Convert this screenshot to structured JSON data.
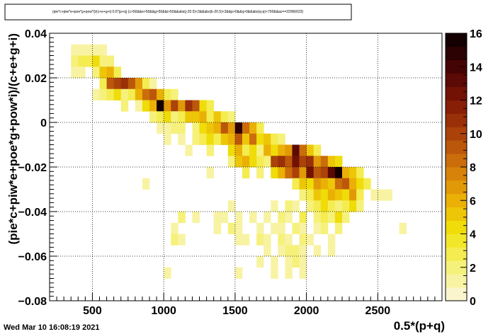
{
  "chart_data": {
    "type": "heatmap",
    "title": "(pie*c+piw*e+poe*g+pow*i)/(c+e+g+i):0.5*(p+q) {c>50&&e>50&&g>50&&i>50&&abs(j-20.5)<3&&abs(k-20.5)<3&&p>0&&q>0&&abs(q-p)<700&&ac==22066023}",
    "xlabel": "0.5*(p+q)",
    "ylabel": "(pie*c+piw*e+poe*g+pow*i)/(c+e+g+i)",
    "xlim": [
      200,
      2950
    ],
    "ylim": [
      -0.08,
      0.04
    ],
    "x_ticks": [
      500,
      1000,
      1500,
      2000,
      2500
    ],
    "x_tick_labels": [
      "500",
      "1000",
      "1500",
      "2000",
      "2500"
    ],
    "y_ticks": [
      -0.08,
      -0.06,
      -0.04,
      -0.02,
      0,
      0.02,
      0.04
    ],
    "y_tick_labels": [
      "−0.08",
      "−0.06",
      "−0.04",
      "−0.02",
      "0",
      "0.02",
      "0.04"
    ],
    "grid": true,
    "bin_width_x": 50,
    "bin_width_y": 0.005,
    "zlim": [
      0,
      16
    ],
    "z_ticks": [
      0,
      2,
      4,
      6,
      8,
      10,
      12,
      14,
      16
    ],
    "z_tick_labels": [
      "0",
      "2",
      "4",
      "6",
      "8",
      "10",
      "12",
      "14",
      "16"
    ],
    "bins": [
      [
        350,
        0.03,
        1
      ],
      [
        400,
        0.03,
        1
      ],
      [
        450,
        0.03,
        1
      ],
      [
        500,
        0.03,
        1
      ],
      [
        550,
        0.03,
        1
      ],
      [
        350,
        0.025,
        2
      ],
      [
        400,
        0.025,
        3
      ],
      [
        450,
        0.025,
        3
      ],
      [
        500,
        0.025,
        4
      ],
      [
        550,
        0.025,
        2
      ],
      [
        600,
        0.025,
        2
      ],
      [
        350,
        0.02,
        1
      ],
      [
        400,
        0.02,
        1
      ],
      [
        500,
        0.02,
        2
      ],
      [
        550,
        0.02,
        5
      ],
      [
        600,
        0.02,
        6
      ],
      [
        650,
        0.02,
        3
      ],
      [
        550,
        0.015,
        3
      ],
      [
        600,
        0.015,
        9
      ],
      [
        650,
        0.015,
        10
      ],
      [
        700,
        0.015,
        11
      ],
      [
        750,
        0.015,
        9
      ],
      [
        800,
        0.015,
        7
      ],
      [
        850,
        0.015,
        3
      ],
      [
        900,
        0.015,
        1
      ],
      [
        500,
        0.01,
        1
      ],
      [
        550,
        0.01,
        2
      ],
      [
        600,
        0.01,
        3
      ],
      [
        650,
        0.01,
        4
      ],
      [
        700,
        0.01,
        2
      ],
      [
        750,
        0.01,
        3
      ],
      [
        800,
        0.01,
        6
      ],
      [
        850,
        0.01,
        8
      ],
      [
        900,
        0.01,
        9
      ],
      [
        950,
        0.01,
        6
      ],
      [
        1000,
        0.01,
        3
      ],
      [
        1050,
        0.01,
        2
      ],
      [
        700,
        0.005,
        2
      ],
      [
        800,
        0.005,
        1
      ],
      [
        850,
        0.005,
        4
      ],
      [
        900,
        0.005,
        6
      ],
      [
        950,
        0.005,
        16
      ],
      [
        1000,
        0.005,
        7
      ],
      [
        1050,
        0.005,
        10
      ],
      [
        1100,
        0.005,
        7
      ],
      [
        1150,
        0.005,
        11
      ],
      [
        1200,
        0.005,
        9
      ],
      [
        1250,
        0.005,
        4
      ],
      [
        1300,
        0.005,
        3
      ],
      [
        900,
        0.0,
        2
      ],
      [
        950,
        0.0,
        3
      ],
      [
        1000,
        0.0,
        4
      ],
      [
        1050,
        0.0,
        2
      ],
      [
        1100,
        0.0,
        3
      ],
      [
        1150,
        0.0,
        5
      ],
      [
        1200,
        0.0,
        5
      ],
      [
        1250,
        0.0,
        6
      ],
      [
        1300,
        0.0,
        3
      ],
      [
        1350,
        0.0,
        5
      ],
      [
        1400,
        0.0,
        3
      ],
      [
        1450,
        0.0,
        2
      ],
      [
        950,
        -0.005,
        1
      ],
      [
        1000,
        -0.005,
        1
      ],
      [
        1050,
        -0.005,
        2
      ],
      [
        1100,
        -0.005,
        2
      ],
      [
        1200,
        -0.005,
        2
      ],
      [
        1250,
        -0.005,
        4
      ],
      [
        1300,
        -0.005,
        5
      ],
      [
        1350,
        -0.005,
        6
      ],
      [
        1400,
        -0.005,
        9
      ],
      [
        1450,
        -0.005,
        7
      ],
      [
        1500,
        -0.005,
        15
      ],
      [
        1550,
        -0.005,
        8
      ],
      [
        1600,
        -0.005,
        6
      ],
      [
        1650,
        -0.005,
        3
      ],
      [
        1000,
        -0.01,
        1
      ],
      [
        1100,
        -0.01,
        1
      ],
      [
        1200,
        -0.01,
        2
      ],
      [
        1250,
        -0.01,
        3
      ],
      [
        1300,
        -0.01,
        4
      ],
      [
        1350,
        -0.01,
        3
      ],
      [
        1400,
        -0.01,
        5
      ],
      [
        1450,
        -0.01,
        6
      ],
      [
        1500,
        -0.01,
        9
      ],
      [
        1550,
        -0.01,
        5
      ],
      [
        1600,
        -0.01,
        8
      ],
      [
        1650,
        -0.01,
        4
      ],
      [
        1700,
        -0.01,
        5
      ],
      [
        1750,
        -0.01,
        3
      ],
      [
        1800,
        -0.01,
        2
      ],
      [
        1150,
        -0.015,
        1
      ],
      [
        1300,
        -0.015,
        2
      ],
      [
        1450,
        -0.015,
        4
      ],
      [
        1500,
        -0.015,
        6
      ],
      [
        1550,
        -0.015,
        3
      ],
      [
        1600,
        -0.015,
        4
      ],
      [
        1650,
        -0.015,
        2
      ],
      [
        1700,
        -0.015,
        6
      ],
      [
        1750,
        -0.015,
        4
      ],
      [
        1800,
        -0.015,
        6
      ],
      [
        1850,
        -0.015,
        7
      ],
      [
        1900,
        -0.015,
        13
      ],
      [
        1950,
        -0.015,
        8
      ],
      [
        2000,
        -0.015,
        5
      ],
      [
        2050,
        -0.015,
        3
      ],
      [
        1450,
        -0.02,
        2
      ],
      [
        1500,
        -0.02,
        5
      ],
      [
        1550,
        -0.02,
        6
      ],
      [
        1600,
        -0.02,
        4
      ],
      [
        1650,
        -0.02,
        3
      ],
      [
        1700,
        -0.02,
        2
      ],
      [
        1750,
        -0.02,
        10
      ],
      [
        1800,
        -0.02,
        11
      ],
      [
        1850,
        -0.02,
        9
      ],
      [
        1900,
        -0.02,
        12
      ],
      [
        1950,
        -0.02,
        10
      ],
      [
        2000,
        -0.02,
        11
      ],
      [
        2050,
        -0.02,
        7
      ],
      [
        2100,
        -0.02,
        8
      ],
      [
        2150,
        -0.02,
        5
      ],
      [
        2200,
        -0.02,
        4
      ],
      [
        1300,
        -0.025,
        1
      ],
      [
        1550,
        -0.025,
        3
      ],
      [
        1650,
        -0.025,
        2
      ],
      [
        1750,
        -0.025,
        4
      ],
      [
        1800,
        -0.025,
        6
      ],
      [
        1850,
        -0.025,
        8
      ],
      [
        1900,
        -0.025,
        10
      ],
      [
        1950,
        -0.025,
        7
      ],
      [
        2000,
        -0.025,
        12
      ],
      [
        2050,
        -0.025,
        9
      ],
      [
        2100,
        -0.025,
        10
      ],
      [
        2150,
        -0.025,
        13
      ],
      [
        2200,
        -0.025,
        16
      ],
      [
        2250,
        -0.025,
        6
      ],
      [
        2300,
        -0.025,
        5
      ],
      [
        2350,
        -0.025,
        3
      ],
      [
        850,
        -0.03,
        1
      ],
      [
        1900,
        -0.03,
        3
      ],
      [
        1950,
        -0.03,
        5
      ],
      [
        2000,
        -0.03,
        4
      ],
      [
        2050,
        -0.03,
        7
      ],
      [
        2100,
        -0.03,
        6
      ],
      [
        2150,
        -0.03,
        5
      ],
      [
        2200,
        -0.03,
        8
      ],
      [
        2250,
        -0.03,
        9
      ],
      [
        2300,
        -0.03,
        6
      ],
      [
        2350,
        -0.03,
        4
      ],
      [
        2400,
        -0.03,
        3
      ],
      [
        1950,
        -0.035,
        2
      ],
      [
        2000,
        -0.035,
        3
      ],
      [
        2050,
        -0.035,
        5
      ],
      [
        2100,
        -0.035,
        4
      ],
      [
        2150,
        -0.035,
        6
      ],
      [
        2200,
        -0.035,
        5
      ],
      [
        2250,
        -0.035,
        4
      ],
      [
        2300,
        -0.035,
        7
      ],
      [
        2350,
        -0.035,
        3
      ],
      [
        2450,
        -0.035,
        1
      ],
      [
        2500,
        -0.035,
        1
      ],
      [
        2550,
        -0.035,
        1
      ],
      [
        1450,
        -0.04,
        1
      ],
      [
        1750,
        -0.04,
        1
      ],
      [
        1850,
        -0.04,
        2
      ],
      [
        1900,
        -0.04,
        1
      ],
      [
        2000,
        -0.04,
        2
      ],
      [
        2050,
        -0.04,
        3
      ],
      [
        2100,
        -0.04,
        4
      ],
      [
        2150,
        -0.04,
        3
      ],
      [
        2200,
        -0.04,
        2
      ],
      [
        2250,
        -0.04,
        3
      ],
      [
        2300,
        -0.04,
        4
      ],
      [
        2350,
        -0.04,
        2
      ],
      [
        1100,
        -0.045,
        2
      ],
      [
        1200,
        -0.045,
        1
      ],
      [
        1350,
        -0.045,
        1
      ],
      [
        1400,
        -0.045,
        1
      ],
      [
        1500,
        -0.045,
        1
      ],
      [
        1600,
        -0.045,
        1
      ],
      [
        1700,
        -0.045,
        1
      ],
      [
        1800,
        -0.045,
        2
      ],
      [
        1850,
        -0.045,
        1
      ],
      [
        1950,
        -0.045,
        3
      ],
      [
        2050,
        -0.045,
        2
      ],
      [
        2100,
        -0.045,
        3
      ],
      [
        2150,
        -0.045,
        2
      ],
      [
        2200,
        -0.045,
        4
      ],
      [
        2250,
        -0.045,
        2
      ],
      [
        1050,
        -0.05,
        1
      ],
      [
        1350,
        -0.05,
        1
      ],
      [
        1450,
        -0.05,
        2
      ],
      [
        1500,
        -0.05,
        1
      ],
      [
        1650,
        -0.05,
        1
      ],
      [
        1750,
        -0.05,
        1
      ],
      [
        1800,
        -0.05,
        1
      ],
      [
        1900,
        -0.05,
        2
      ],
      [
        1950,
        -0.05,
        1
      ],
      [
        2050,
        -0.05,
        1
      ],
      [
        2100,
        -0.05,
        2
      ],
      [
        2200,
        -0.05,
        2
      ],
      [
        2650,
        -0.05,
        1
      ],
      [
        1050,
        -0.055,
        2
      ],
      [
        1100,
        -0.055,
        1
      ],
      [
        1500,
        -0.055,
        1
      ],
      [
        1550,
        -0.055,
        1
      ],
      [
        1650,
        -0.055,
        2
      ],
      [
        1700,
        -0.055,
        1
      ],
      [
        1800,
        -0.055,
        2
      ],
      [
        1850,
        -0.055,
        1
      ],
      [
        1950,
        -0.055,
        2
      ],
      [
        2000,
        -0.055,
        1
      ],
      [
        2150,
        -0.055,
        1
      ],
      [
        1700,
        -0.06,
        1
      ],
      [
        1800,
        -0.06,
        1
      ],
      [
        1850,
        -0.06,
        2
      ],
      [
        1900,
        -0.06,
        2
      ],
      [
        1950,
        -0.06,
        1
      ],
      [
        2050,
        -0.06,
        1
      ],
      [
        2150,
        -0.06,
        1
      ],
      [
        1650,
        -0.065,
        1
      ],
      [
        1750,
        -0.065,
        1
      ],
      [
        1850,
        -0.065,
        1
      ],
      [
        1900,
        -0.065,
        2
      ],
      [
        1950,
        -0.065,
        1
      ],
      [
        1000,
        -0.07,
        1
      ],
      [
        1500,
        -0.07,
        1
      ],
      [
        1750,
        -0.07,
        1
      ],
      [
        1850,
        -0.07,
        1
      ],
      [
        1950,
        -0.07,
        1
      ]
    ]
  },
  "title_box": {
    "text": "(pie*c+piw*e+poe*g+pow*i)/(c+e+g+i):0.5*(p+q) {c>50&&e>50&&g>50&&i>50&&abs(j-20.5)<3&&abs(k-20.5)<3&&p>0&&q>0&&abs(q-p)<700&&ac==22066023}"
  },
  "timestamp": "Wed Mar 10 16:08:19 2021"
}
